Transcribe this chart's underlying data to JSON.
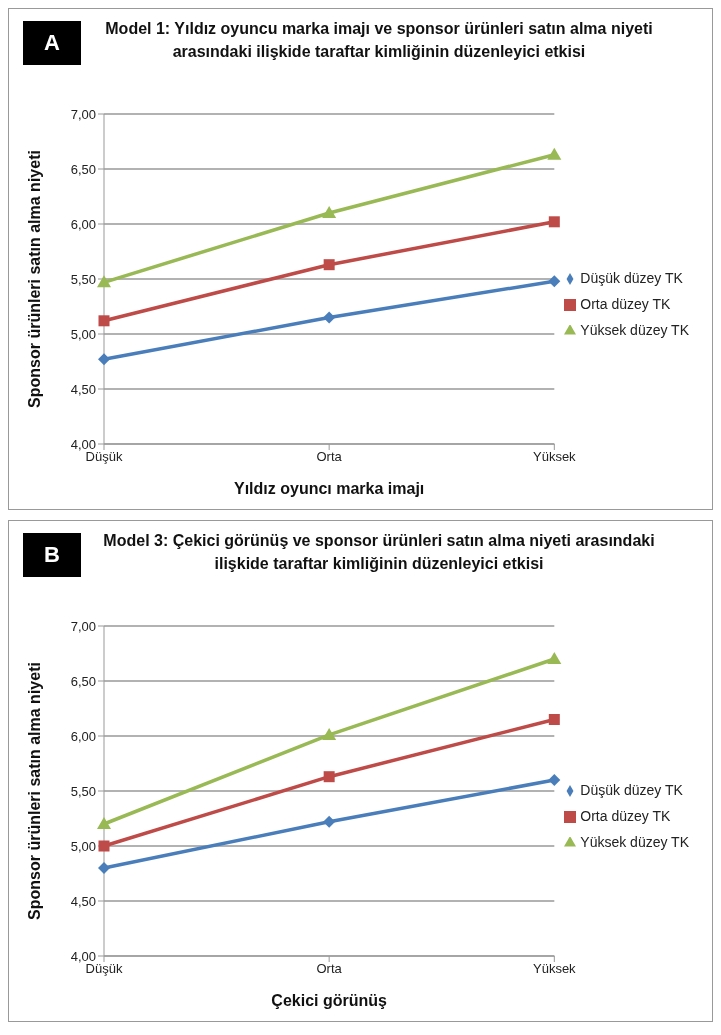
{
  "chart_data": [
    {
      "type": "line",
      "title": "Model 1: Yıldız oyuncu marka imajı ve sponsor ürünleri satın alma niyeti arasındaki ilişkide taraftar kimliğinin düzenleyici etkisi",
      "annotations": [
        "A"
      ],
      "xlabel": "Yıldız oyuncı marka imajı",
      "ylabel": "Sponsor ürünleri satın alma niyeti",
      "categories": [
        "Düşük",
        "Orta",
        "Yüksek"
      ],
      "series": [
        {
          "name": "Düşük düzey TK",
          "color": "#4a7ebb",
          "marker": "diamond",
          "values": [
            4.77,
            5.15,
            5.48
          ]
        },
        {
          "name": "Orta düzey TK",
          "color": "#be4b48",
          "marker": "square",
          "values": [
            5.12,
            5.63,
            6.02
          ]
        },
        {
          "name": "Yüksek düzey TK",
          "color": "#98b954",
          "marker": "triangle",
          "values": [
            5.47,
            6.1,
            6.63
          ]
        }
      ],
      "ylim": [
        4,
        7
      ],
      "yticks": [
        {
          "value": 4,
          "label": "4,00"
        },
        {
          "value": 4.5,
          "label": "4,50"
        },
        {
          "value": 5,
          "label": "5,00"
        },
        {
          "value": 5.5,
          "label": "5,50"
        },
        {
          "value": 6,
          "label": "6,00"
        },
        {
          "value": 6.5,
          "label": "6,50"
        },
        {
          "value": 7,
          "label": "7,00"
        }
      ],
      "grid": "y",
      "legend": "right"
    },
    {
      "type": "line",
      "title": "Model 3: Çekici görünüş ve sponsor ürünleri satın alma niyeti arasındaki ilişkide taraftar kimliğinin düzenleyici etkisi",
      "annotations": [
        "B"
      ],
      "xlabel": "Çekici görünüş",
      "ylabel": "Sponsor ürünleri satın alma niyeti",
      "categories": [
        "Düşük",
        "Orta",
        "Yüksek"
      ],
      "series": [
        {
          "name": "Düşük düzey TK",
          "color": "#4a7ebb",
          "marker": "diamond",
          "values": [
            4.8,
            5.22,
            5.6
          ]
        },
        {
          "name": "Orta düzey TK",
          "color": "#be4b48",
          "marker": "square",
          "values": [
            5.0,
            5.63,
            6.15
          ]
        },
        {
          "name": "Yüksek düzey TK",
          "color": "#98b954",
          "marker": "triangle",
          "values": [
            5.2,
            6.01,
            6.7
          ]
        }
      ],
      "ylim": [
        4,
        7
      ],
      "yticks": [
        {
          "value": 4,
          "label": "4,00"
        },
        {
          "value": 4.5,
          "label": "4,50"
        },
        {
          "value": 5,
          "label": "5,00"
        },
        {
          "value": 5.5,
          "label": "5,50"
        },
        {
          "value": 6,
          "label": "6,00"
        },
        {
          "value": 6.5,
          "label": "6,50"
        },
        {
          "value": 7,
          "label": "7,00"
        }
      ],
      "grid": "y",
      "legend": "right"
    }
  ]
}
